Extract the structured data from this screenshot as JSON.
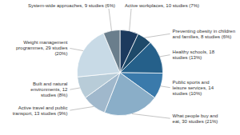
{
  "chart_data": {
    "type": "pie",
    "categories": [
      "Active workplaces, 10 studies (7%)",
      "Preventing obesity in children\nand families, 8 studies (6%)",
      "Healthy schools, 18\nstudies (13%)",
      "Public sports and\nleisure services, 14\nstudies (10%)",
      "What people buy and\neat, 30 studies (21%)",
      "Active travel and public\ntransport, 13 studies (9%)",
      "Built and natural\nenvironments, 12\nstudies (8%)",
      "Weight management\nprogrammes, 29 studies\n(20%)",
      "System-wide approaches, 9 studies (6%)"
    ],
    "values": [
      10,
      8,
      18,
      14,
      30,
      13,
      12,
      29,
      9
    ],
    "colors": [
      "#1c3a5e",
      "#1e4a6a",
      "#25608a",
      "#3a7aab",
      "#8aaec8",
      "#a0b8cc",
      "#b8ccd8",
      "#c8dae6",
      "#6a7e8c"
    ]
  }
}
